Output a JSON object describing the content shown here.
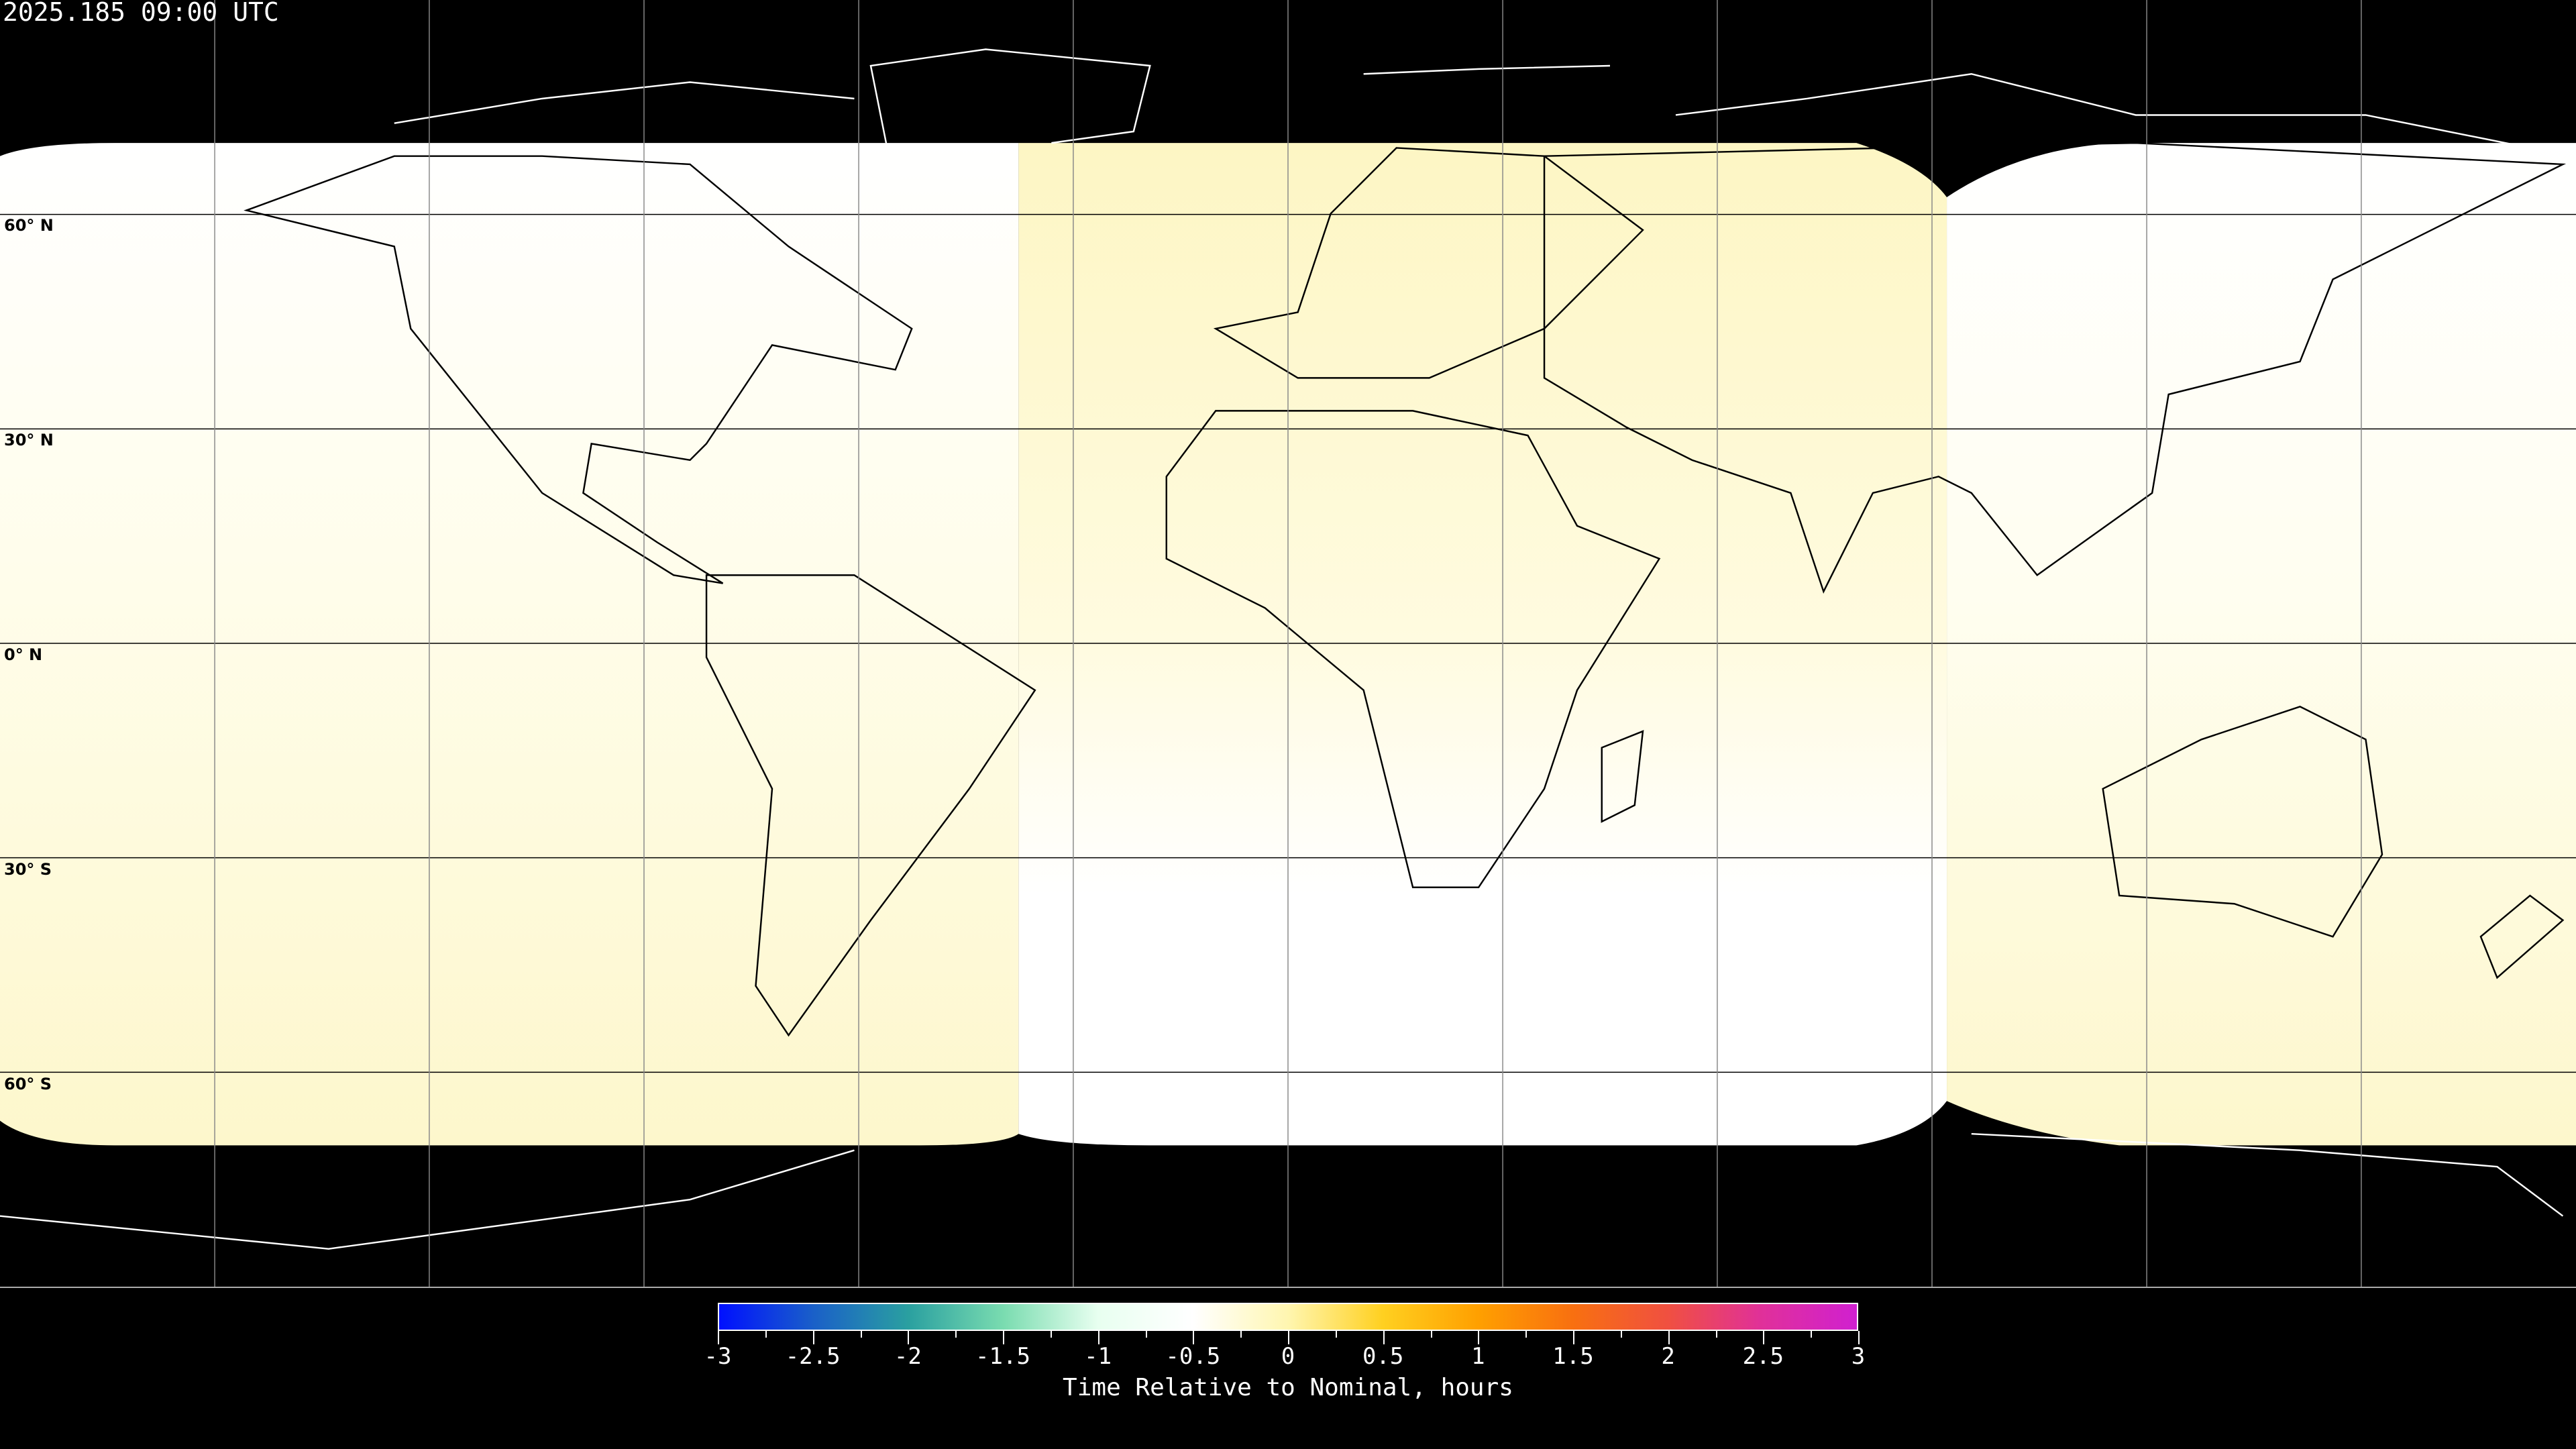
{
  "title": "2025.185 09:00 UTC",
  "map": {
    "projection": "equirectangular",
    "background_color": "#000000",
    "coastline_color_on_dark": "#ffffff",
    "coastline_color_on_light": "#000000",
    "gridline_spacing_deg": 30,
    "lat_labels": [
      "60° N",
      "30° N",
      "0° N",
      "30° S",
      "60° S"
    ]
  },
  "colorbar": {
    "title": "Time Relative to Nominal, hours",
    "range": [
      -3,
      3
    ],
    "tick_labels": [
      "-3",
      "-2.5",
      "-2",
      "-1.5",
      "-1",
      "-0.5",
      "0",
      "0.5",
      "1",
      "1.5",
      "2",
      "2.5",
      "3"
    ],
    "colors": [
      "#0010ff",
      "#1a60c8",
      "#2aa0a0",
      "#7adcb0",
      "#e8fff0",
      "#ffffff",
      "#fff6b0",
      "#ffd020",
      "#ffa000",
      "#f87010",
      "#f05040",
      "#e0309a",
      "#d020d0"
    ]
  }
}
